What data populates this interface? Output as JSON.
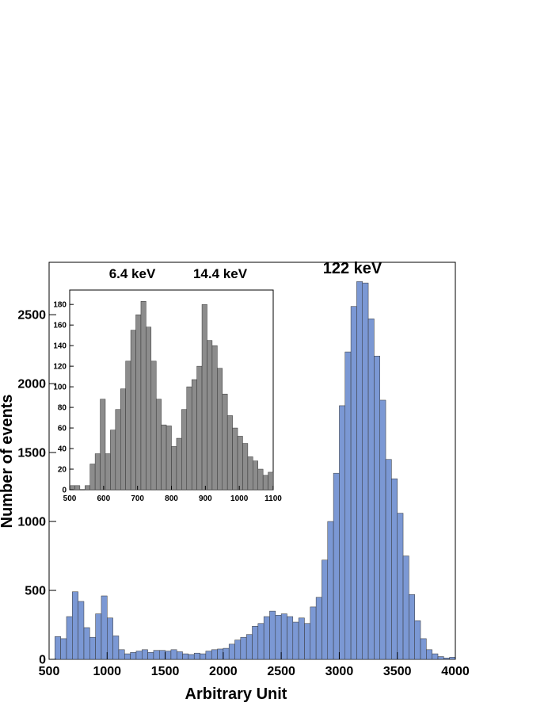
{
  "chart_data": [
    {
      "type": "histogram",
      "xlabel": "Arbitrary Unit",
      "ylabel": "Number of events",
      "annotations": [
        "122 keV"
      ],
      "color": "#7b98d4",
      "bins": [
        500,
        550,
        600,
        650,
        700,
        750,
        800,
        850,
        900,
        950,
        1000,
        1050,
        1100,
        1150,
        1200,
        1250,
        1300,
        1350,
        1400,
        1450,
        1500,
        1550,
        1600,
        1650,
        1700,
        1750,
        1800,
        1850,
        1900,
        1950,
        2000,
        2050,
        2100,
        2150,
        2200,
        2250,
        2300,
        2350,
        2400,
        2450,
        2500,
        2550,
        2600,
        2650,
        2700,
        2750,
        2800,
        2850,
        2900,
        2950,
        3000,
        3050,
        3100,
        3150,
        3200,
        3250,
        3300,
        3350,
        3400,
        3450,
        3500,
        3550,
        3600,
        3650,
        3700,
        3750,
        3800,
        3850,
        3900,
        3950,
        4000
      ],
      "values": [
        0,
        165,
        150,
        310,
        490,
        420,
        230,
        160,
        330,
        460,
        300,
        170,
        70,
        40,
        50,
        60,
        70,
        50,
        65,
        65,
        60,
        70,
        55,
        40,
        35,
        45,
        40,
        60,
        70,
        75,
        80,
        110,
        140,
        160,
        180,
        240,
        260,
        310,
        350,
        320,
        330,
        310,
        270,
        300,
        260,
        380,
        450,
        720,
        1000,
        1350,
        1840,
        2230,
        2560,
        2740,
        2730,
        2470,
        2200,
        1880,
        1450,
        1310,
        1060,
        750,
        470,
        280,
        150,
        70,
        40,
        20,
        10,
        15
      ],
      "xlim": [
        500,
        4000
      ],
      "ylim": [
        0,
        2880
      ],
      "xticks": [
        500,
        1000,
        1500,
        2000,
        2500,
        3000,
        3500,
        4000
      ],
      "yticks": [
        0,
        500,
        1000,
        1500,
        2000,
        2500
      ]
    },
    {
      "type": "histogram",
      "annotations": [
        "6.4 keV",
        "14.4 keV"
      ],
      "color": "#8c8c8c",
      "bins": [
        500,
        515,
        530,
        545,
        560,
        575,
        590,
        605,
        620,
        635,
        650,
        665,
        680,
        695,
        710,
        725,
        740,
        755,
        770,
        785,
        800,
        815,
        830,
        845,
        860,
        875,
        890,
        905,
        920,
        935,
        950,
        965,
        980,
        995,
        1010,
        1025,
        1040,
        1055,
        1070,
        1085,
        1100
      ],
      "values": [
        4,
        4,
        0,
        4,
        25,
        35,
        88,
        35,
        58,
        78,
        98,
        125,
        155,
        170,
        183,
        158,
        125,
        88,
        63,
        62,
        42,
        50,
        78,
        100,
        107,
        120,
        180,
        145,
        140,
        118,
        93,
        72,
        60,
        52,
        45,
        32,
        28,
        20,
        14,
        17
      ],
      "xlim": [
        500,
        1100
      ],
      "ylim": [
        0,
        194
      ],
      "xticks": [
        500,
        600,
        700,
        800,
        900,
        1000,
        1100
      ],
      "yticks": [
        0,
        20,
        40,
        60,
        80,
        100,
        120,
        140,
        160,
        180
      ]
    }
  ]
}
